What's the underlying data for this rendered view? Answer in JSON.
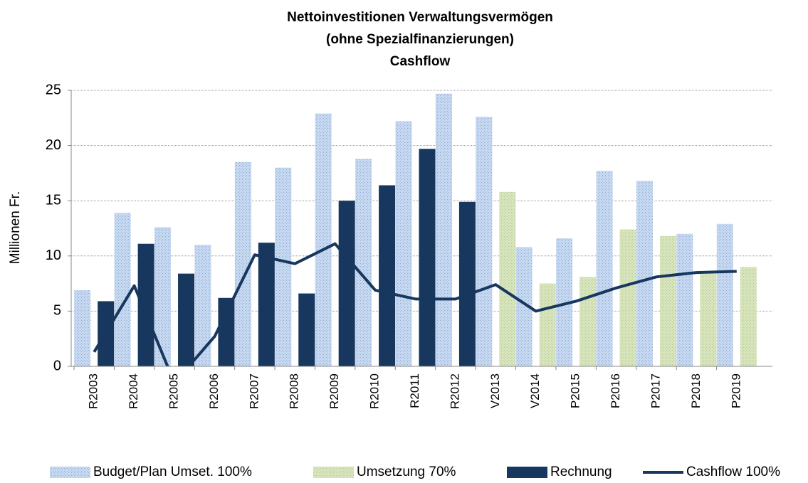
{
  "chart_data": {
    "type": "bar",
    "title": [
      "Nettoinvestitionen Verwaltungsvermögen",
      "(ohne Spezialfinanzierungen)",
      "Cashflow"
    ],
    "y_label": "Millionen Fr.",
    "categories": [
      "R2003",
      "R2004",
      "R2005",
      "R2006",
      "R2007",
      "R2008",
      "R2009",
      "R2010",
      "R2011",
      "R2012",
      "V2013",
      "V2014",
      "P2015",
      "P2016",
      "P2017",
      "P2018",
      "P2019"
    ],
    "series": [
      {
        "name": "Budget/Plan Umset. 100%",
        "type": "bar",
        "slot": "left",
        "color": "#c6d9f0",
        "values": [
          6.9,
          13.9,
          12.6,
          11.0,
          18.5,
          18.0,
          22.9,
          18.8,
          22.2,
          24.7,
          22.6,
          10.8,
          11.6,
          17.7,
          16.8,
          12.0,
          12.9
        ]
      },
      {
        "name": "Umsetzung 70%",
        "type": "bar",
        "slot": "right",
        "color": "#d7e4bd",
        "values": [
          null,
          null,
          null,
          null,
          null,
          null,
          null,
          null,
          null,
          null,
          15.8,
          7.5,
          8.1,
          12.4,
          11.8,
          8.4,
          9.0
        ]
      },
      {
        "name": "Rechnung",
        "type": "bar",
        "slot": "right",
        "color": "#17375e",
        "values": [
          5.9,
          11.1,
          8.4,
          6.2,
          11.2,
          6.6,
          15.0,
          16.4,
          19.7,
          14.9,
          null,
          null,
          null,
          null,
          null,
          null,
          null
        ]
      },
      {
        "name": "Cashflow 100%",
        "type": "line",
        "color": "#17375e",
        "values": [
          1.3,
          7.3,
          -1.5,
          2.7,
          10.1,
          9.3,
          11.1,
          6.9,
          6.1,
          6.1,
          7.4,
          5.0,
          5.9,
          7.1,
          8.1,
          8.5,
          8.6
        ]
      }
    ],
    "ylim": [
      0,
      25
    ],
    "yticks": [
      0,
      5,
      10,
      15,
      20,
      25
    ],
    "grid": true,
    "legend": "bottom"
  }
}
